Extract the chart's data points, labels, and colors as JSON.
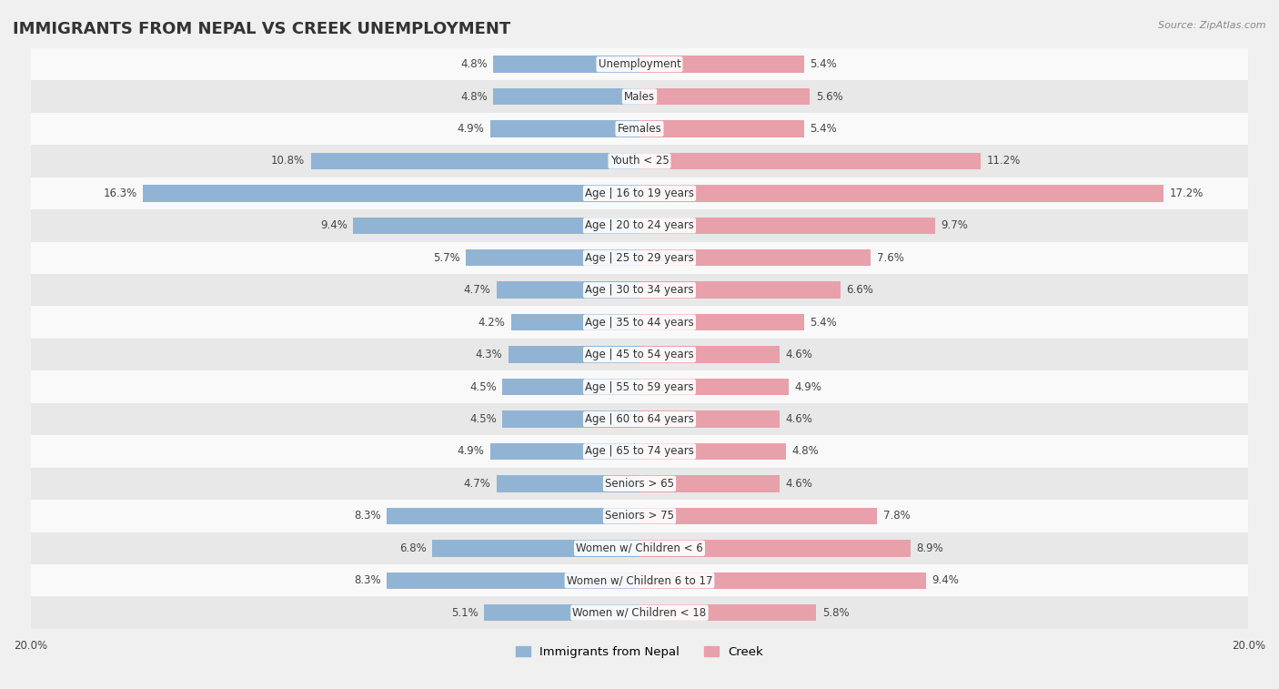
{
  "title": "IMMIGRANTS FROM NEPAL VS CREEK UNEMPLOYMENT",
  "source": "Source: ZipAtlas.com",
  "categories": [
    "Unemployment",
    "Males",
    "Females",
    "Youth < 25",
    "Age | 16 to 19 years",
    "Age | 20 to 24 years",
    "Age | 25 to 29 years",
    "Age | 30 to 34 years",
    "Age | 35 to 44 years",
    "Age | 45 to 54 years",
    "Age | 55 to 59 years",
    "Age | 60 to 64 years",
    "Age | 65 to 74 years",
    "Seniors > 65",
    "Seniors > 75",
    "Women w/ Children < 6",
    "Women w/ Children 6 to 17",
    "Women w/ Children < 18"
  ],
  "nepal_values": [
    4.8,
    4.8,
    4.9,
    10.8,
    16.3,
    9.4,
    5.7,
    4.7,
    4.2,
    4.3,
    4.5,
    4.5,
    4.9,
    4.7,
    8.3,
    6.8,
    8.3,
    5.1
  ],
  "creek_values": [
    5.4,
    5.6,
    5.4,
    11.2,
    17.2,
    9.7,
    7.6,
    6.6,
    5.4,
    4.6,
    4.9,
    4.6,
    4.8,
    4.6,
    7.8,
    8.9,
    9.4,
    5.8
  ],
  "nepal_color": "#92b4d4",
  "creek_color": "#e8a0aa",
  "nepal_label": "Immigrants from Nepal",
  "creek_label": "Creek",
  "background_color": "#f0f0f0",
  "row_even_color": "#f9f9f9",
  "row_odd_color": "#e8e8e8",
  "max_val": 20.0,
  "bar_height": 0.52,
  "title_fontsize": 13,
  "label_fontsize": 8.5,
  "value_fontsize": 8.5,
  "legend_fontsize": 9.5,
  "source_fontsize": 8
}
